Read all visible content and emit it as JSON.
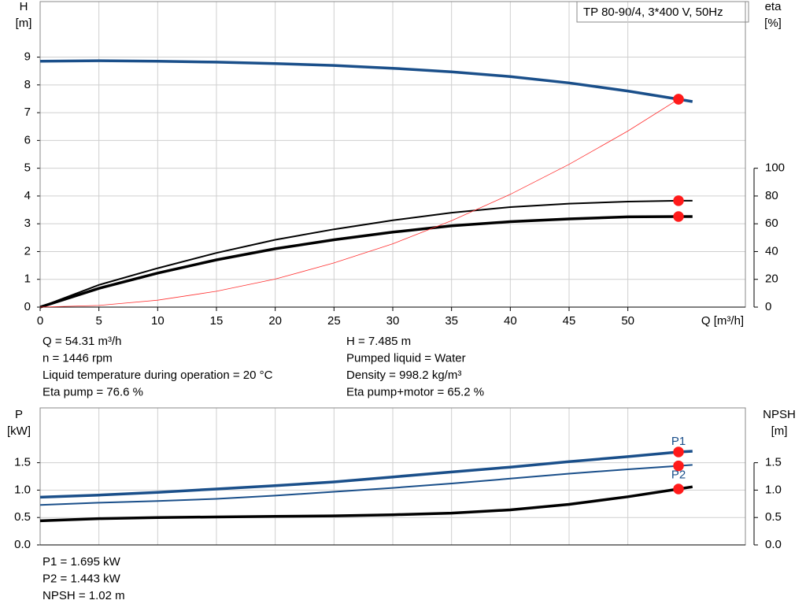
{
  "chart_data": [
    {
      "type": "line",
      "title": "TP 80-90/4, 3*400 V, 50Hz",
      "y_label": "H",
      "y_unit": "[m]",
      "y2_label": "eta",
      "y2_unit": "[%]",
      "x_label": "Q [m³/h]",
      "x": [
        0,
        5,
        10,
        15,
        20,
        25,
        30,
        35,
        40,
        45,
        50,
        54.31,
        55.5
      ],
      "xlim": [
        0,
        60
      ],
      "xticks": [
        0,
        5,
        10,
        15,
        20,
        25,
        30,
        35,
        40,
        45,
        50
      ],
      "ylim": [
        0,
        11
      ],
      "yticks": [
        0,
        1,
        2,
        3,
        4,
        5,
        6,
        7,
        8,
        9
      ],
      "y2lim": [
        0,
        220
      ],
      "y2ticks": [
        0,
        20,
        40,
        60,
        80,
        100
      ],
      "grid": true,
      "operating_point": {
        "x": 54.31,
        "marker_color": "#ff1a1a"
      },
      "series": [
        {
          "color": "#1a4f8a",
          "width": 3.5,
          "marker_color": "#ffff00",
          "values": [
            8.85,
            8.87,
            8.85,
            8.82,
            8.77,
            8.7,
            8.6,
            8.47,
            8.3,
            8.07,
            7.78,
            7.485,
            7.4
          ]
        },
        {
          "color": "#000000",
          "width": 2,
          "axis": "y2",
          "values": [
            0,
            16,
            28,
            39,
            48.5,
            56,
            62.5,
            68,
            72,
            74.5,
            76,
            76.6,
            76.6
          ]
        },
        {
          "color": "#000000",
          "width": 3.5,
          "axis": "y2",
          "values": [
            0,
            13.5,
            24.5,
            34,
            42,
            48.5,
            54,
            58.5,
            61.5,
            63.5,
            65,
            65.2,
            65.2
          ]
        },
        {
          "color": "#ff3030",
          "width": 0.8,
          "values": [
            0,
            0.06,
            0.25,
            0.57,
            1.01,
            1.59,
            2.28,
            3.11,
            4.06,
            5.14,
            6.34,
            7.485,
            null
          ]
        }
      ],
      "info_left": [
        "Q = 54.31 m³/h",
        "n = 1446 rpm",
        "Liquid temperature during operation = 20 °C",
        "Eta pump = 76.6 %"
      ],
      "info_right": [
        "H = 7.485 m",
        "Pumped liquid = Water",
        "Density = 998.2 kg/m³",
        "Eta pump+motor = 65.2 %"
      ]
    },
    {
      "type": "line",
      "y_label": "P",
      "y_unit": "[kW]",
      "y2_label": "NPSH",
      "y2_unit": "[m]",
      "x": [
        0,
        5,
        10,
        15,
        20,
        25,
        30,
        35,
        40,
        45,
        50,
        54.31,
        55.5
      ],
      "xlim": [
        0,
        60
      ],
      "ylim": [
        0,
        2.5
      ],
      "yticks": [
        {
          "value": 0,
          "label": "0.0"
        },
        {
          "value": 0.5,
          "label": "0.5"
        },
        {
          "value": 1,
          "label": "1.0"
        },
        {
          "value": 1.5,
          "label": "1.5"
        }
      ],
      "y2lim": [
        0,
        2.5
      ],
      "y2ticks": [
        {
          "value": 0,
          "label": "0.0"
        },
        {
          "value": 0.5,
          "label": "0.5"
        },
        {
          "value": 1,
          "label": "1.0"
        },
        {
          "value": 1.5,
          "label": "1.5"
        }
      ],
      "grid": true,
      "operating_point": {
        "x": 54.31,
        "marker_color": "#ff1a1a"
      },
      "series": [
        {
          "name": "P1",
          "color": "#1a4f8a",
          "width": 3.5,
          "values": [
            0.87,
            0.91,
            0.96,
            1.02,
            1.08,
            1.15,
            1.24,
            1.33,
            1.42,
            1.52,
            1.61,
            1.695,
            1.71
          ]
        },
        {
          "name": "P2",
          "color": "#1a4f8a",
          "width": 2,
          "values": [
            0.73,
            0.77,
            0.8,
            0.84,
            0.9,
            0.97,
            1.04,
            1.12,
            1.21,
            1.3,
            1.38,
            1.443,
            1.46
          ]
        },
        {
          "color": "#000000",
          "width": 3.5,
          "axis": "y2",
          "values": [
            0.44,
            0.48,
            0.5,
            0.51,
            0.52,
            0.53,
            0.55,
            0.58,
            0.64,
            0.74,
            0.88,
            1.02,
            1.06
          ]
        }
      ],
      "info": [
        "P1 = 1.695 kW",
        "P2 = 1.443 kW",
        "NPSH = 1.02 m"
      ]
    }
  ]
}
